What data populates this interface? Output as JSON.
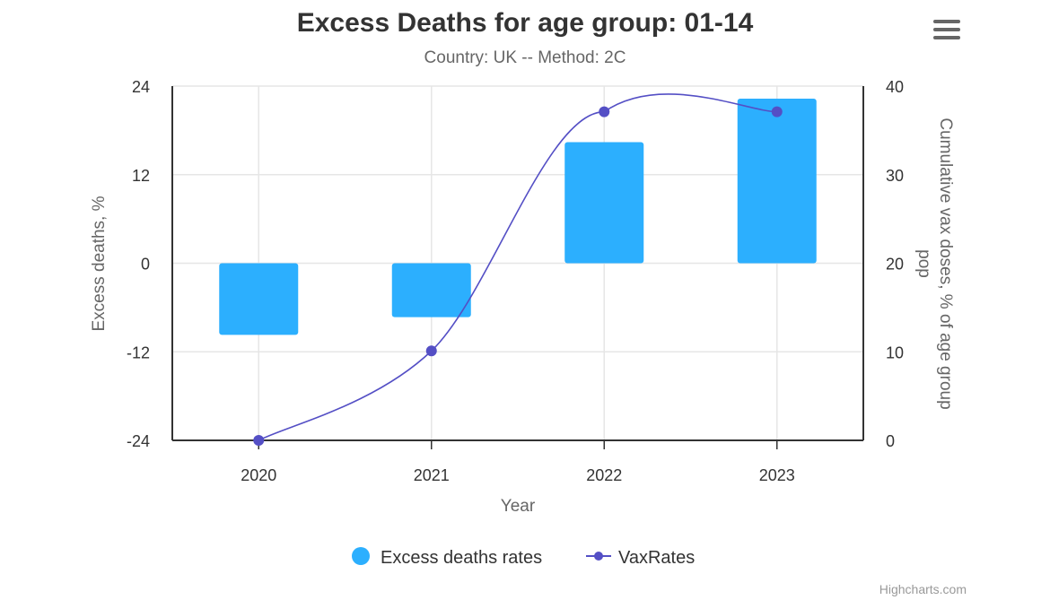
{
  "chart_data": {
    "type": "bar+line",
    "title": "Excess Deaths for age group: 01-14",
    "subtitle": "Country: UK -- Method: 2C",
    "xlabel": "Year",
    "ylabel": "Excess deaths, %",
    "y2label": "Cumulative vax doses, % of age group pop",
    "categories": [
      "2020",
      "2021",
      "2022",
      "2023"
    ],
    "ylim": [
      -24,
      24
    ],
    "yticks": [
      "-24",
      "-12",
      "0",
      "12",
      "24"
    ],
    "y2lim": [
      0,
      40
    ],
    "y2ticks": [
      "0",
      "10",
      "20",
      "30",
      "40"
    ],
    "grid": true,
    "legend_position": "bottom-center",
    "series": [
      {
        "name": "Excess deaths rates",
        "type": "bar",
        "axis": "left",
        "color": "#2caffe",
        "values": [
          -9.7,
          -7.3,
          16.4,
          22.3
        ]
      },
      {
        "name": "VaxRates",
        "type": "spline",
        "axis": "right",
        "color": "#544fc5",
        "values": [
          0,
          10.1,
          37.1,
          37.1
        ]
      }
    ],
    "credits": "Highcharts.com"
  }
}
